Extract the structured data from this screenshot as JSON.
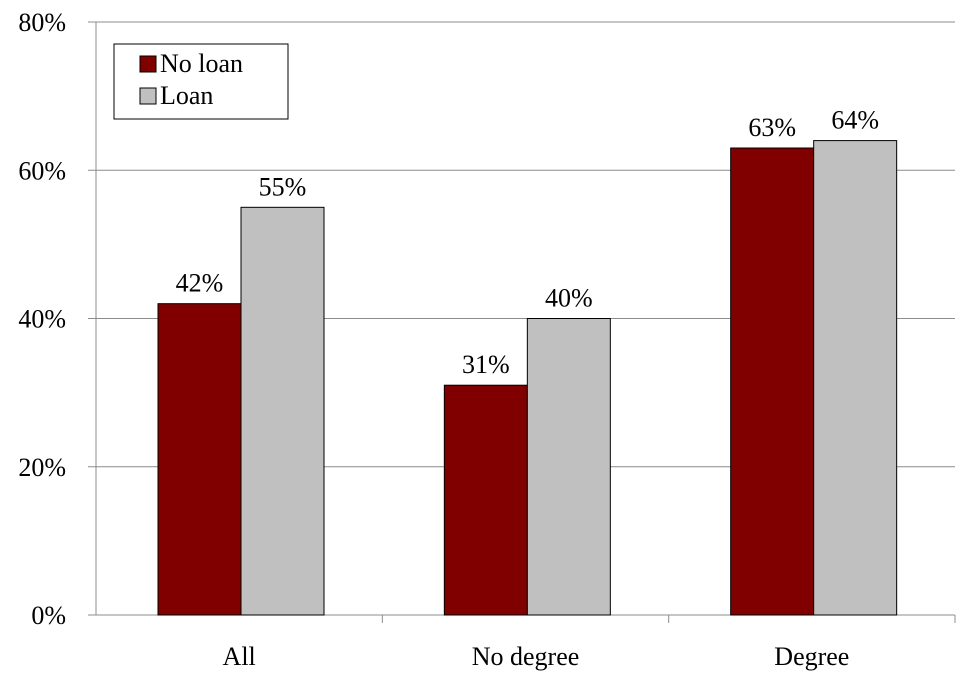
{
  "chart_data": {
    "type": "bar",
    "categories": [
      "All",
      "No degree",
      "Degree"
    ],
    "series": [
      {
        "name": "No loan",
        "values": [
          42,
          31,
          63
        ],
        "labels": [
          "42%",
          "31%",
          "63%"
        ],
        "color": "#800000"
      },
      {
        "name": "Loan",
        "values": [
          55,
          40,
          64
        ],
        "labels": [
          "55%",
          "40%",
          "64%"
        ],
        "color": "#C0C0C0"
      }
    ],
    "ylim": [
      0,
      80
    ],
    "yticks": [
      0,
      20,
      40,
      60,
      80
    ],
    "ytick_labels": [
      "0%",
      "20%",
      "40%",
      "60%",
      "80%"
    ],
    "grid": true,
    "legend_position": "top-left"
  }
}
